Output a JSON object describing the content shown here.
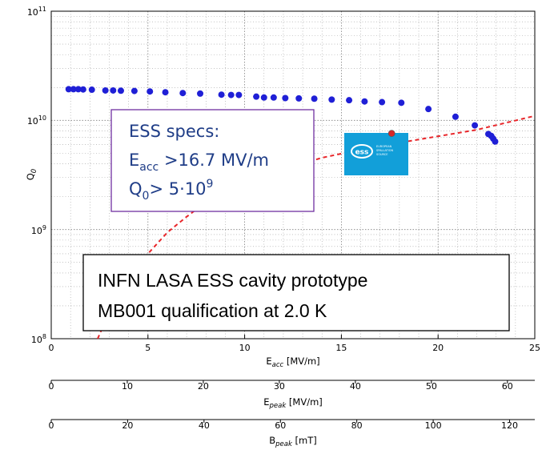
{
  "chart_data": {
    "type": "scatter",
    "xlabel": {
      "base": "E",
      "sub": "acc",
      "unit": " [MV/m]"
    },
    "ylabel": {
      "base": "Q",
      "sub": "0"
    },
    "xlim": [
      0,
      25
    ],
    "ylim": [
      100000000,
      100000000000
    ],
    "yscale": "log",
    "grid": true,
    "x_ticks": [
      "0",
      "5",
      "10",
      "15",
      "20",
      "25"
    ],
    "y_ticks": [
      {
        "base": "10",
        "exp": "8",
        "value": 100000000
      },
      {
        "base": "10",
        "exp": "9",
        "value": 1000000000
      },
      {
        "base": "10",
        "exp": "10",
        "value": 10000000000
      },
      {
        "base": "10",
        "exp": "11",
        "value": 100000000000
      }
    ],
    "secondary_axes": [
      {
        "label": {
          "base": "E",
          "sub": "peak",
          "unit": " [MV/m]"
        },
        "ticks": [
          0,
          10,
          20,
          30,
          40,
          50,
          60
        ],
        "xlim": [
          0,
          63.6
        ]
      },
      {
        "label": {
          "base": "B",
          "sub": "peak",
          "unit": " [mT]"
        },
        "ticks": [
          0,
          20,
          40,
          60,
          80,
          100,
          120
        ],
        "xlim": [
          0,
          126.6
        ]
      }
    ],
    "series": [
      {
        "marker": "circle",
        "color": "#1f1fd6",
        "x": [
          0.9,
          1.15,
          1.4,
          1.65,
          2.1,
          2.8,
          3.2,
          3.6,
          4.3,
          5.1,
          5.9,
          6.8,
          7.7,
          8.8,
          9.3,
          9.7,
          10.6,
          11.0,
          11.5,
          12.1,
          12.8,
          13.6,
          14.5,
          15.4,
          16.2,
          17.1,
          18.1,
          19.5,
          20.9,
          21.9,
          22.6,
          22.75,
          22.85,
          22.95
        ],
        "y": [
          19300000000,
          19300000000,
          19300000000,
          19200000000,
          19100000000,
          18800000000,
          18800000000,
          18700000000,
          18600000000,
          18400000000,
          18100000000,
          17800000000,
          17600000000,
          17200000000,
          17100000000,
          17100000000,
          16500000000,
          16200000000,
          16200000000,
          16000000000,
          15900000000,
          15800000000,
          15500000000,
          15300000000,
          14900000000,
          14700000000,
          14500000000,
          12700000000,
          10800000000,
          9000000000,
          7500000000,
          7200000000,
          6800000000,
          6400000000
        ]
      },
      {
        "marker": "circle",
        "color": "#d62728",
        "x": [
          17.6
        ],
        "y": [
          7600000000
        ]
      },
      {
        "line": "dashed",
        "color": "#e8262a",
        "x": [
          2.4,
          3.0,
          4.0,
          5.0,
          6.0,
          7.0,
          8.0,
          10.0,
          12.0,
          14.0,
          16.0,
          18.0,
          20.0,
          22.0,
          25.0
        ],
        "y": [
          100000000,
          175000000,
          345000000,
          600000000,
          940000000,
          1310000000,
          1780000000,
          2660000000,
          3550000000,
          4550000000,
          5400000000,
          6250000000,
          7150000000,
          8200000000,
          11000000000
        ]
      }
    ],
    "annotations": {
      "specs": {
        "title": "ESS specs:",
        "line2": {
          "base": "E",
          "sub": "acc",
          "rest": " >16.7 MV/m"
        },
        "line3": {
          "base": "Q",
          "sub": "0",
          "mid": "> 5·10",
          "sup": "9"
        }
      },
      "info": {
        "line1": "INFN LASA ESS cavity prototype",
        "line2": "MB001  qualification at 2.0 K"
      },
      "logo": {
        "text": "ess",
        "small_lines": [
          "EUROPEAN",
          "SPALLATION",
          "SOURCE"
        ]
      }
    },
    "colors": {
      "blue_points": "#1f1fd6",
      "red_curve": "#e8262a",
      "specs_border": "#7030a0",
      "specs_text": "#1f3d87",
      "logo_bg": "#129fd9"
    }
  }
}
